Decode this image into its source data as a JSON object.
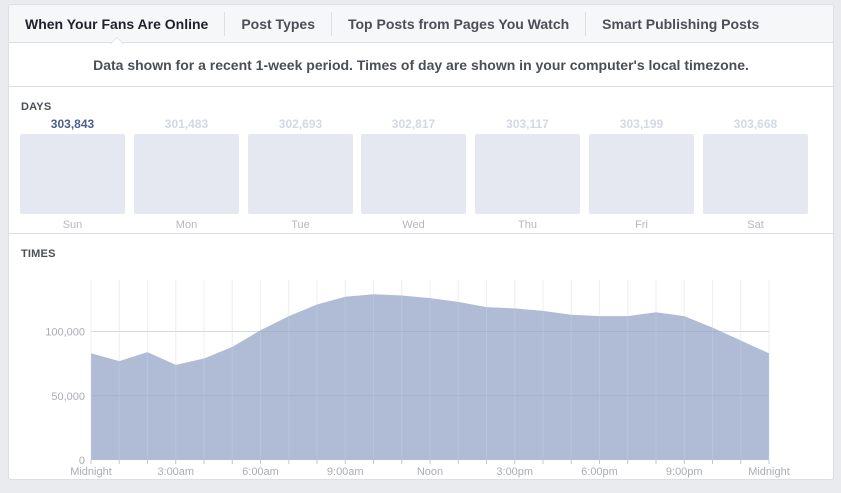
{
  "tabs": [
    {
      "label": "When Your Fans Are Online",
      "active": true
    },
    {
      "label": "Post Types",
      "active": false
    },
    {
      "label": "Top Posts from Pages You Watch",
      "active": false
    },
    {
      "label": "Smart Publishing Posts",
      "active": false
    }
  ],
  "notice": "Data shown for a recent 1-week period. Times of day are shown in your computer's local timezone.",
  "days": {
    "title": "DAYS",
    "items": [
      {
        "day": "Sun",
        "value": "303,843",
        "selected": true
      },
      {
        "day": "Mon",
        "value": "301,483",
        "selected": false
      },
      {
        "day": "Tue",
        "value": "302,693",
        "selected": false
      },
      {
        "day": "Wed",
        "value": "302,817",
        "selected": false
      },
      {
        "day": "Thu",
        "value": "303,117",
        "selected": false
      },
      {
        "day": "Fri",
        "value": "303,199",
        "selected": false
      },
      {
        "day": "Sat",
        "value": "303,668",
        "selected": false
      }
    ]
  },
  "times": {
    "title": "TIMES"
  },
  "colors": {
    "area_fill": "#b0bcd6",
    "selected_value": "#4b5f8c",
    "unselected_value": "#d3d8e4",
    "day_bar": "#e5e8f1",
    "grid": "#ebedf0"
  },
  "chart_data": [
    {
      "type": "bar",
      "title": "DAYS",
      "categories": [
        "Sun",
        "Mon",
        "Tue",
        "Wed",
        "Thu",
        "Fri",
        "Sat"
      ],
      "values": [
        303843,
        301483,
        302693,
        302817,
        303117,
        303199,
        303668
      ],
      "selected": "Sun"
    },
    {
      "type": "area",
      "title": "TIMES",
      "xlabel": "",
      "ylabel": "",
      "x": [
        "Midnight",
        "1:00am",
        "2:00am",
        "3:00am",
        "4:00am",
        "5:00am",
        "6:00am",
        "7:00am",
        "8:00am",
        "9:00am",
        "10:00am",
        "11:00am",
        "Noon",
        "1:00pm",
        "2:00pm",
        "3:00pm",
        "4:00pm",
        "5:00pm",
        "6:00pm",
        "7:00pm",
        "8:00pm",
        "9:00pm",
        "10:00pm",
        "11:00pm",
        "Midnight"
      ],
      "values": [
        83000,
        77000,
        84000,
        74000,
        79000,
        88000,
        101000,
        112000,
        121000,
        127000,
        129000,
        128000,
        126000,
        123000,
        119000,
        118000,
        116000,
        113000,
        112000,
        112000,
        115000,
        112000,
        103000,
        93000,
        83000
      ],
      "x_tick_labels": [
        "Midnight",
        "3:00am",
        "6:00am",
        "9:00am",
        "Noon",
        "3:00pm",
        "6:00pm",
        "9:00pm",
        "Midnight"
      ],
      "y_tick_labels": [
        "0",
        "50,000",
        "100,000"
      ],
      "yticks": [
        0,
        50000,
        100000
      ],
      "ylim": [
        0,
        140000
      ],
      "grid": true,
      "legend": "none"
    }
  ]
}
